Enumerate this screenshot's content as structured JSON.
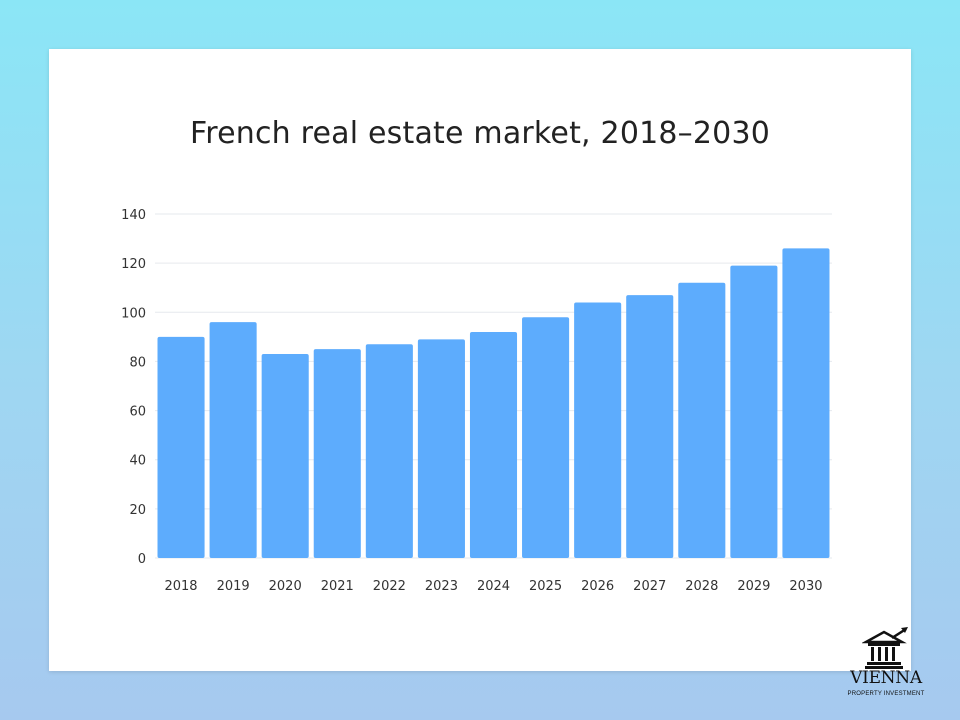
{
  "colors": {
    "bar": "#5dacfd",
    "grid": "#e6e9ee",
    "text": "#222222"
  },
  "chart_data": {
    "type": "bar",
    "title": "French real estate market, 2018–2030",
    "xlabel": "",
    "ylabel": "",
    "categories": [
      "2018",
      "2019",
      "2020",
      "2021",
      "2022",
      "2023",
      "2024",
      "2025",
      "2026",
      "2027",
      "2028",
      "2029",
      "2030"
    ],
    "values": [
      90,
      96,
      83,
      85,
      87,
      89,
      92,
      98,
      104,
      107,
      112,
      119,
      126
    ],
    "ylim": [
      0,
      140
    ],
    "yticks": [
      0,
      20,
      40,
      60,
      80,
      100,
      120,
      140
    ],
    "grid": true,
    "legend": "none"
  },
  "logo": {
    "name": "VIENNA",
    "subtitle": "PROPERTY INVESTMENT",
    "icon": "building-columns-arrow-icon"
  }
}
